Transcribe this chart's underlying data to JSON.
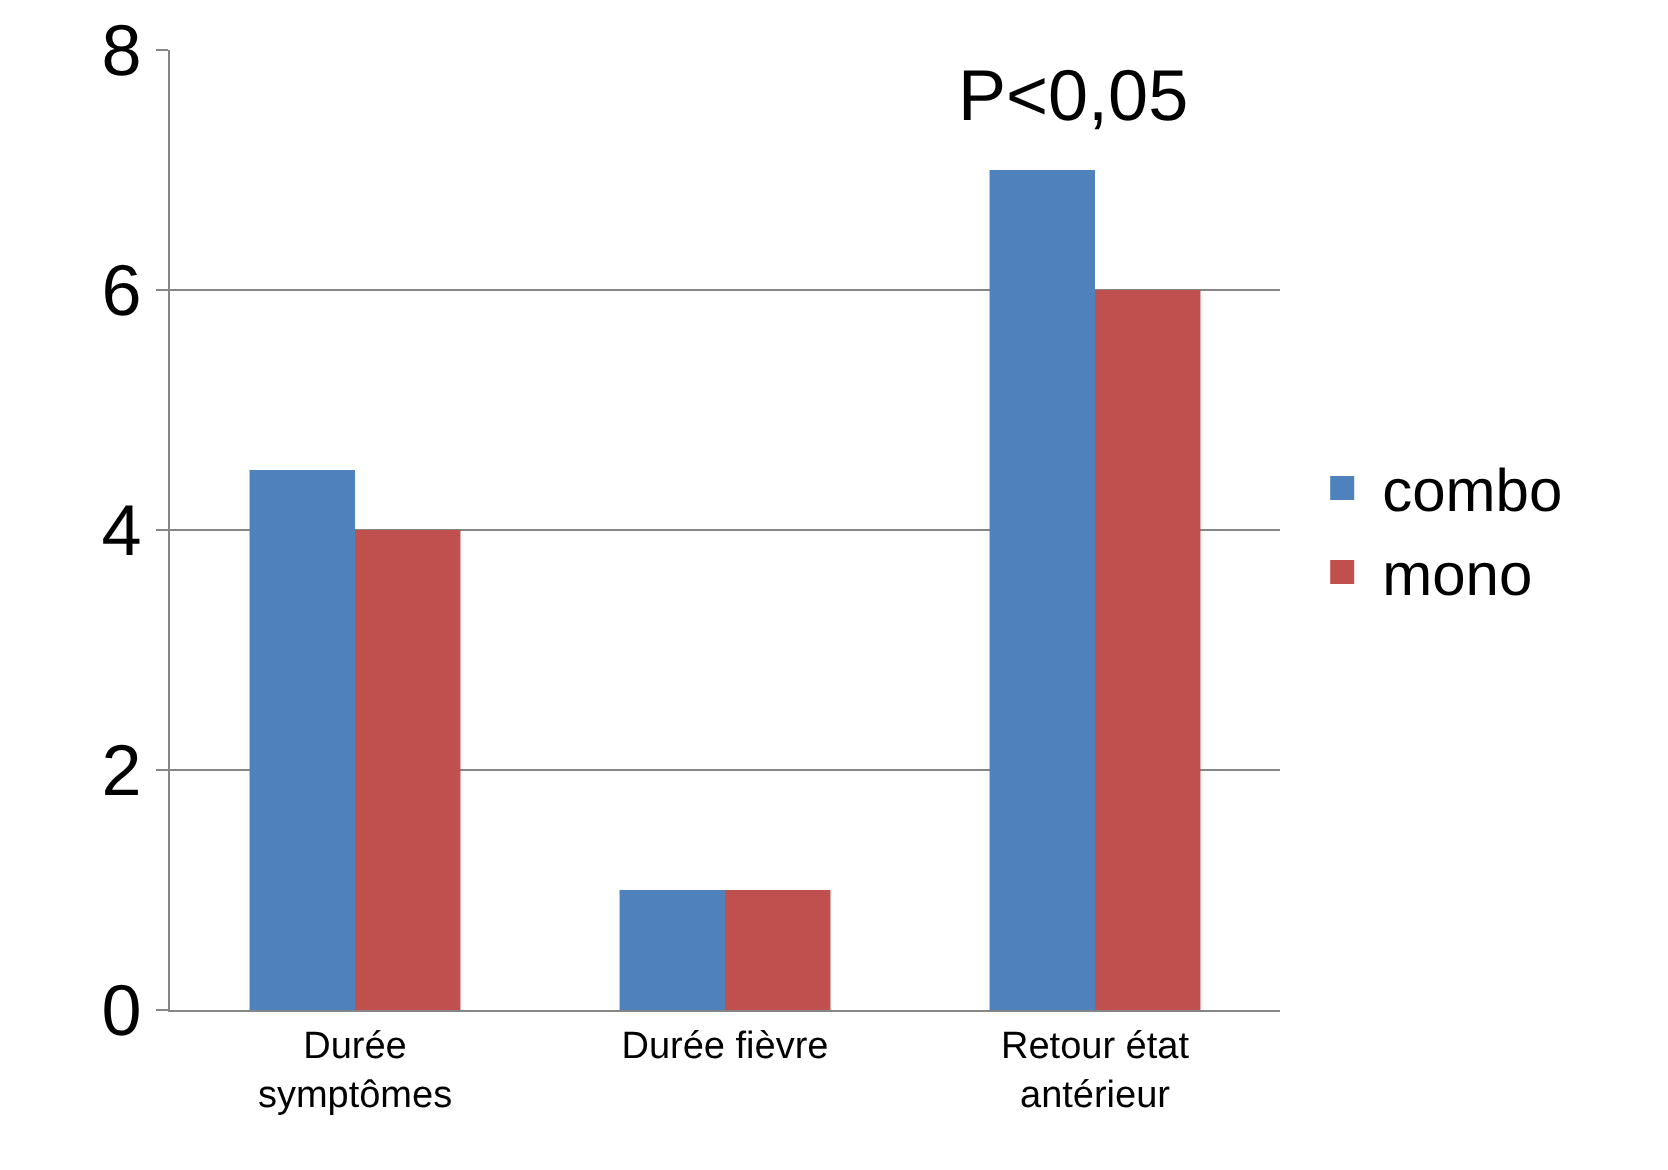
{
  "chart_data": {
    "type": "bar",
    "categories": [
      "Durée symptômes",
      "Durée fièvre",
      "Retour état antérieur"
    ],
    "series": [
      {
        "name": "combo",
        "color": "#4f81bd",
        "values": [
          4.5,
          1,
          7
        ]
      },
      {
        "name": "mono",
        "color": "#c0504d",
        "values": [
          4,
          1,
          6
        ]
      }
    ],
    "ylim": [
      0,
      8
    ],
    "yticks": [
      0,
      2,
      4,
      6,
      8
    ],
    "grid": "y",
    "legend": "right",
    "annotations": [
      "P<0,05"
    ]
  }
}
